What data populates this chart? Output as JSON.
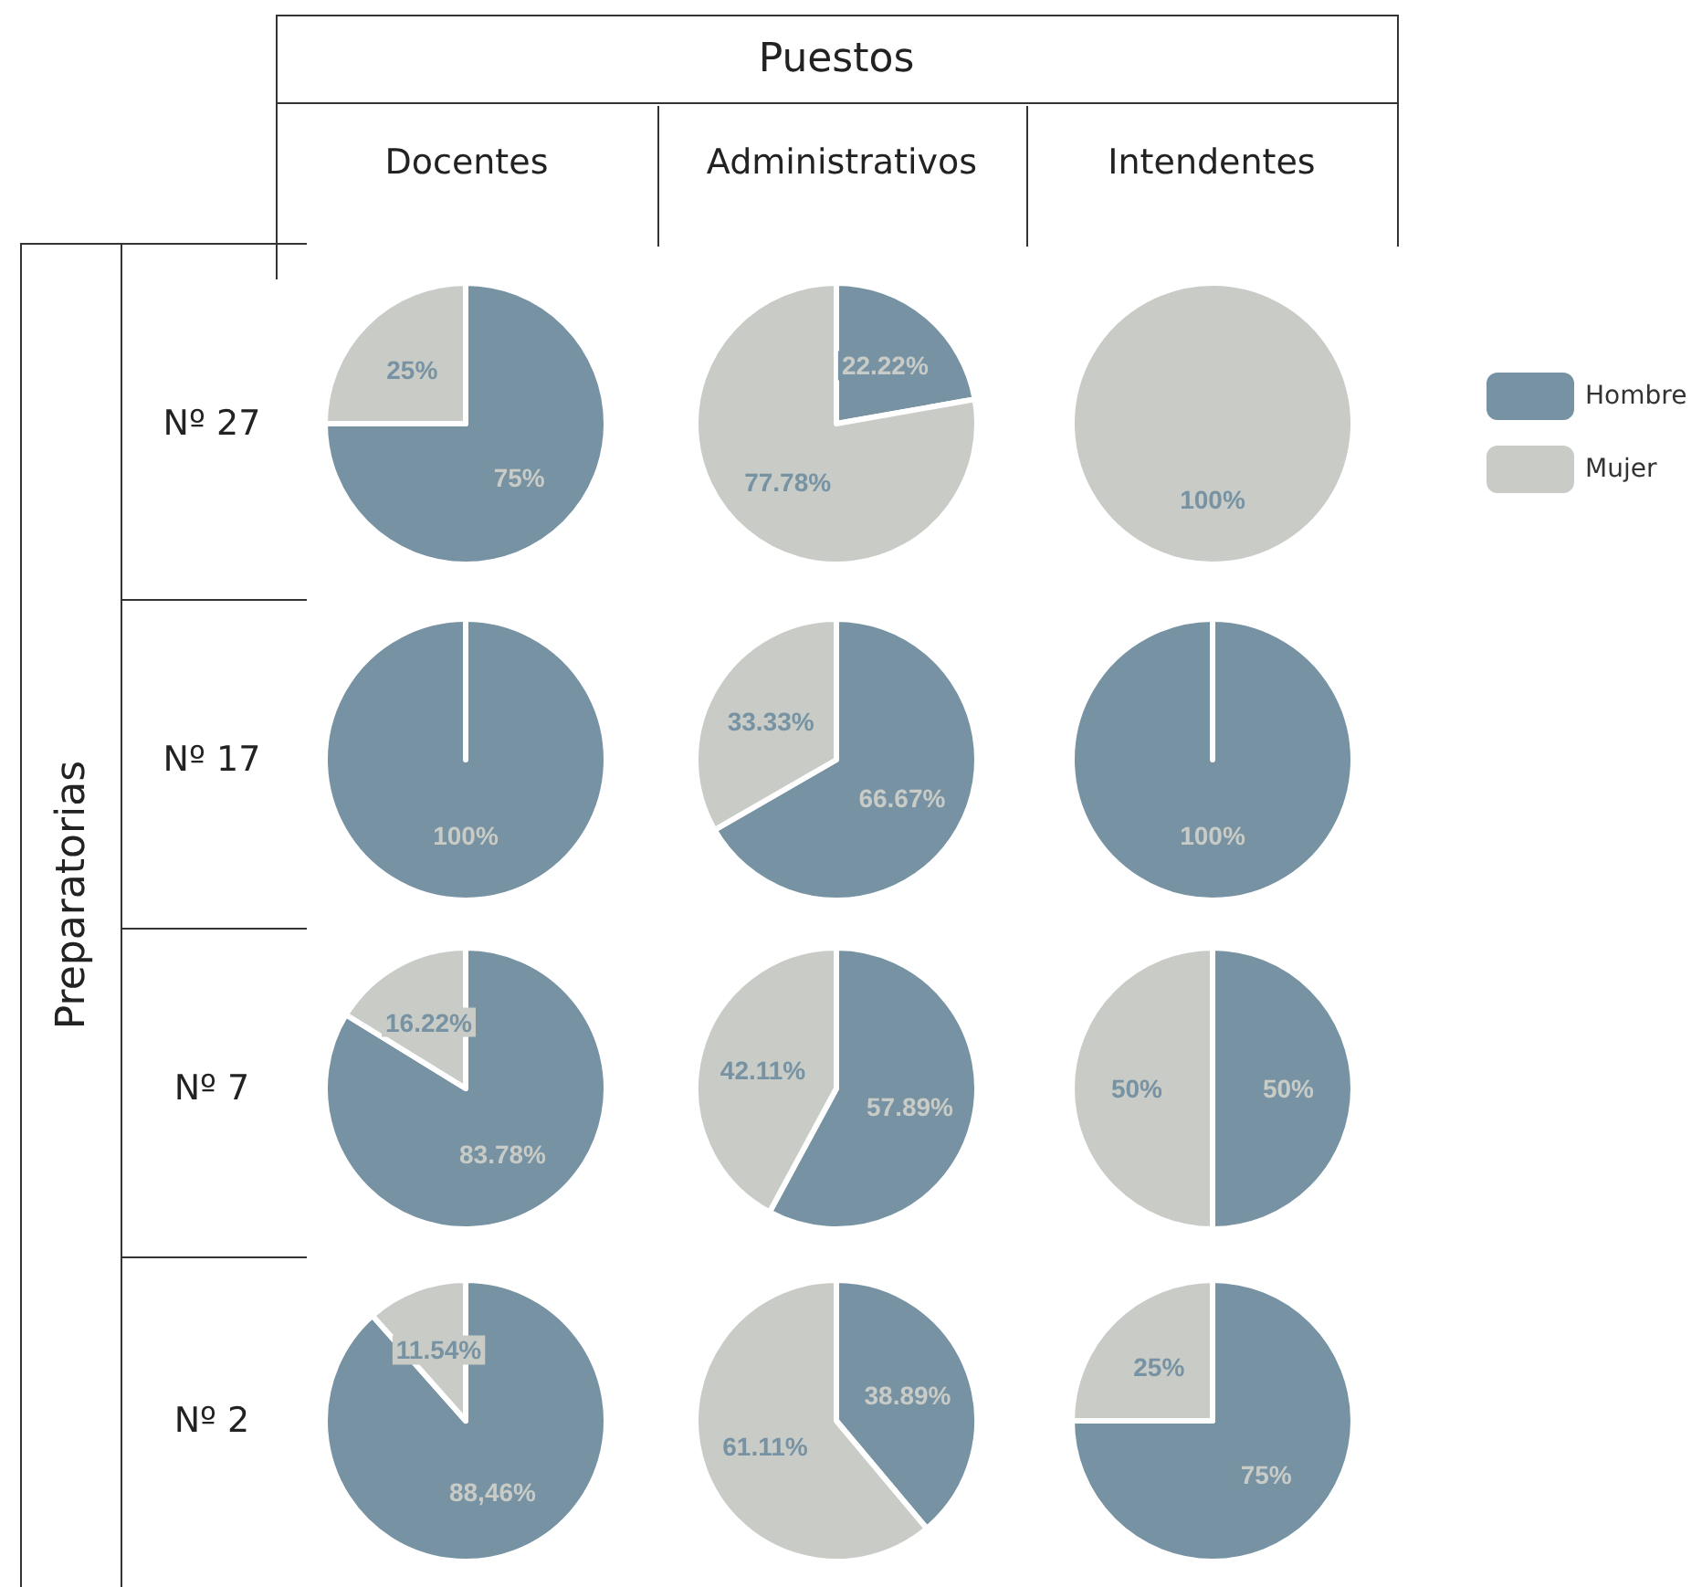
{
  "chart_data": [
    {
      "type": "other",
      "title": "Puestos",
      "ylabel": "Preparatorias",
      "categories": [
        "Docentes",
        "Administrativos",
        "Intendentes"
      ],
      "annotations": [
        "Nº 27",
        "Nº 17",
        "Nº 7",
        "Nº 2"
      ]
    },
    {
      "type": "pie",
      "values": [
        75,
        25
      ],
      "colors": [
        "#7793a3",
        "#c8cbc6"
      ],
      "value_labels": [
        "75%",
        "25%"
      ]
    },
    {
      "type": "pie",
      "values": [
        22.22,
        77.78
      ],
      "colors": [
        "#7793a3",
        "#c8cbc6"
      ],
      "value_labels": [
        "22.22%",
        "77.78%"
      ]
    },
    {
      "type": "pie",
      "categories": [
        "Hombre",
        "Mujer"
      ],
      "values": [
        0,
        100
      ],
      "colors": [
        "#7793a3",
        "#c8cbc6"
      ],
      "value_labels": [
        null,
        "100%"
      ],
      "legend": "right"
    },
    {
      "type": "pie",
      "values": [
        100,
        0
      ],
      "colors": [
        "#7793a3",
        "#c8cbc6"
      ],
      "value_labels": [
        "100%",
        null
      ]
    },
    {
      "type": "pie",
      "values": [
        66.67,
        33.33
      ],
      "colors": [
        "#7793a3",
        "#c8cbc6"
      ],
      "value_labels": [
        "66.67%",
        "33.33%"
      ]
    },
    {
      "type": "pie",
      "values": [
        100,
        0
      ],
      "colors": [
        "#7793a3",
        "#c8cbc6"
      ],
      "value_labels": [
        "100%",
        null
      ]
    },
    {
      "type": "pie",
      "values": [
        83.78,
        16.22
      ],
      "colors": [
        "#7793a3",
        "#c8cbc6"
      ],
      "value_labels": [
        "83.78%",
        "16.22%"
      ]
    },
    {
      "type": "pie",
      "values": [
        57.89,
        42.11
      ],
      "colors": [
        "#7793a3",
        "#c8cbc6"
      ],
      "value_labels": [
        "57.89%",
        "42.11%"
      ]
    },
    {
      "type": "pie",
      "values": [
        50,
        50
      ],
      "colors": [
        "#7793a3",
        "#c8cbc6"
      ],
      "value_labels": [
        "50%",
        "50%"
      ]
    },
    {
      "type": "pie",
      "values": [
        88.46,
        11.54
      ],
      "colors": [
        "#7793a3",
        "#c8cbc6"
      ],
      "value_labels": [
        "88,46%",
        "11.54%"
      ]
    },
    {
      "type": "pie",
      "values": [
        38.89,
        61.11
      ],
      "colors": [
        "#7793a3",
        "#c8cbc6"
      ],
      "value_labels": [
        "38.89%",
        "61.11%"
      ]
    },
    {
      "type": "pie",
      "values": [
        75,
        25
      ],
      "colors": [
        "#7793a3",
        "#c8cbc6"
      ],
      "value_labels": [
        "75%",
        "25%"
      ]
    }
  ]
}
